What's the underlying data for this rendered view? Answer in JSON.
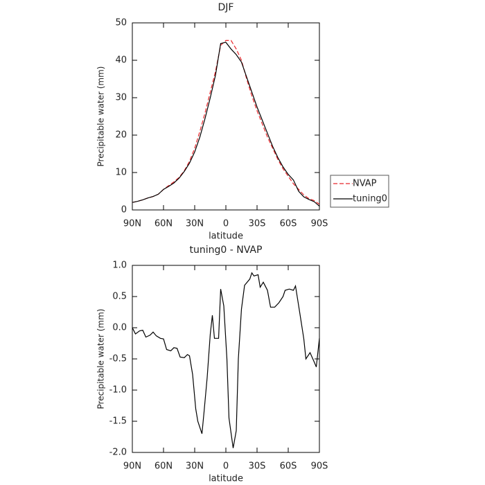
{
  "chart_data": [
    {
      "type": "line",
      "title": "DJF",
      "xlabel": "latitude",
      "ylabel": "Precipitable water (mm)",
      "x": [
        90,
        85,
        80,
        75,
        70,
        65,
        60,
        55,
        50,
        45,
        40,
        35,
        30,
        25,
        20,
        15,
        10,
        5,
        0,
        -5,
        -10,
        -15,
        -20,
        -25,
        -30,
        -35,
        -40,
        -45,
        -50,
        -55,
        -60,
        -65,
        -70,
        -75,
        -80,
        -85,
        -90
      ],
      "series": [
        {
          "name": "NVAP",
          "color": "#e8262a",
          "linestyle": "dashed",
          "values": [
            2.0,
            2.3,
            2.7,
            3.2,
            3.6,
            4.2,
            5.5,
            6.5,
            7.5,
            8.7,
            10.5,
            13.0,
            16.5,
            21.0,
            26.0,
            31.5,
            37.0,
            44.0,
            45.3,
            45.3,
            43.0,
            40.0,
            35.0,
            30.5,
            26.5,
            23.0,
            19.5,
            16.5,
            13.5,
            11.0,
            9.0,
            7.0,
            5.5,
            4.0,
            3.0,
            2.5,
            1.5
          ]
        },
        {
          "name": "tuning0",
          "color": "#000000",
          "linestyle": "solid",
          "values": [
            2.0,
            2.3,
            2.7,
            3.2,
            3.6,
            4.2,
            5.5,
            6.3,
            7.2,
            8.5,
            10.3,
            12.5,
            15.5,
            19.5,
            24.5,
            30.0,
            36.0,
            44.5,
            44.8,
            43.0,
            41.5,
            39.5,
            35.5,
            31.5,
            27.5,
            24.0,
            20.5,
            17.0,
            14.0,
            11.5,
            9.5,
            8.0,
            5.0,
            3.5,
            2.8,
            2.2,
            1.0
          ]
        }
      ],
      "xlim": [
        90,
        -90
      ],
      "xticks": [
        {
          "value": 90,
          "label": "90N"
        },
        {
          "value": 60,
          "label": "60N"
        },
        {
          "value": 30,
          "label": "30N"
        },
        0,
        {
          "value": -30,
          "label": "30S"
        },
        {
          "value": -60,
          "label": "60S"
        },
        {
          "value": -90,
          "label": "90S"
        }
      ],
      "ylim": [
        0,
        50
      ],
      "yticks": [
        0,
        10,
        20,
        30,
        40,
        50
      ],
      "legend": "right"
    },
    {
      "type": "line",
      "title": "tuning0 - NVAP",
      "xlabel": "latitude",
      "ylabel": "Precipitable water (mm)",
      "x": [
        90,
        87,
        83,
        80,
        77,
        73,
        70,
        67,
        63,
        60,
        57,
        53,
        50,
        47,
        44,
        40,
        37,
        35,
        32,
        29,
        27,
        23,
        21,
        18,
        15,
        13,
        11,
        7,
        5,
        2,
        -1,
        -3,
        -7,
        -10,
        -12,
        -15,
        -18,
        -23,
        -25,
        -27,
        -31,
        -33,
        -36,
        -40,
        -43,
        -47,
        -51,
        -55,
        -57,
        -61,
        -65,
        -67,
        -71,
        -75,
        -77,
        -81,
        -85,
        -87,
        -90
      ],
      "values": [
        0.0,
        -0.1,
        -0.05,
        -0.04,
        -0.15,
        -0.12,
        -0.07,
        -0.13,
        -0.17,
        -0.18,
        -0.35,
        -0.37,
        -0.32,
        -0.33,
        -0.47,
        -0.48,
        -0.43,
        -0.45,
        -0.75,
        -1.3,
        -1.5,
        -1.7,
        -1.35,
        -0.8,
        -0.1,
        0.2,
        -0.17,
        -0.17,
        0.62,
        0.35,
        -0.5,
        -1.45,
        -1.93,
        -1.65,
        -0.5,
        0.3,
        0.68,
        0.78,
        0.88,
        0.83,
        0.85,
        0.65,
        0.73,
        0.6,
        0.33,
        0.33,
        0.4,
        0.5,
        0.6,
        0.62,
        0.6,
        0.67,
        0.25,
        -0.18,
        -0.5,
        -0.4,
        -0.55,
        -0.63,
        -0.17
      ],
      "color": "#000000",
      "xlim": [
        90,
        -90
      ],
      "xticks": [
        {
          "value": 90,
          "label": "90N"
        },
        {
          "value": 60,
          "label": "60N"
        },
        {
          "value": 30,
          "label": "30N"
        },
        0,
        {
          "value": -30,
          "label": "30S"
        },
        {
          "value": -60,
          "label": "60S"
        },
        {
          "value": -90,
          "label": "90S"
        }
      ],
      "ylim": [
        -2,
        1
      ],
      "yticks": [
        {
          "value": -2,
          "label": "-2.0"
        },
        {
          "value": -1.5,
          "label": "-1.5"
        },
        {
          "value": -1,
          "label": "-1.0"
        },
        {
          "value": -0.5,
          "label": "-0.5"
        },
        {
          "value": 0,
          "label": "0.0"
        },
        {
          "value": 0.5,
          "label": "0.5"
        },
        {
          "value": 1,
          "label": "1.0"
        }
      ]
    }
  ]
}
